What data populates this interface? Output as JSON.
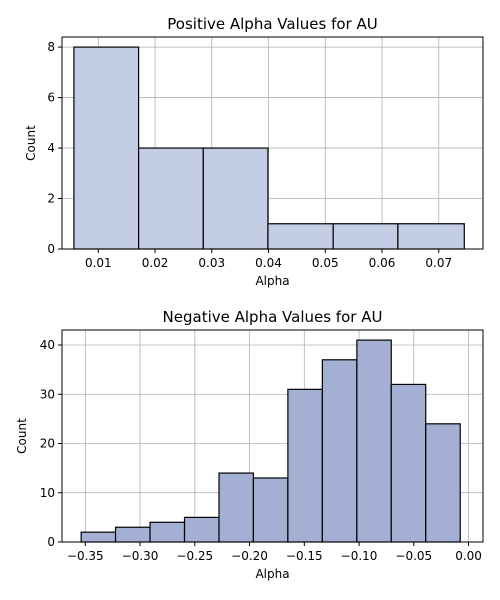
{
  "chart_data": [
    {
      "type": "bar",
      "title": "Positive Alpha Values for AU",
      "xlabel": "Alpha",
      "ylabel": "Count",
      "xlim": [
        0.0036,
        0.0778
      ],
      "ylim": [
        0,
        8.4
      ],
      "xticks": [
        0.01,
        0.02,
        0.03,
        0.04,
        0.05,
        0.06,
        0.07
      ],
      "xtick_labels": [
        "0.01",
        "0.02",
        "0.03",
        "0.04",
        "0.05",
        "0.06",
        "0.07"
      ],
      "yticks": [
        0,
        2,
        4,
        6,
        8
      ],
      "ytick_labels": [
        "0",
        "2",
        "4",
        "6",
        "8"
      ],
      "bin_edges": [
        0.0057,
        0.0171,
        0.0285,
        0.0399,
        0.0514,
        0.0628,
        0.0745
      ],
      "values": [
        8,
        4,
        4,
        1,
        1,
        1
      ],
      "bar_color": "#c3cde3",
      "grid": true
    },
    {
      "type": "bar",
      "title": "Negative Alpha Values for AU",
      "xlabel": "Alpha",
      "ylabel": "Count",
      "xlim": [
        -0.3713,
        0.0132
      ],
      "ylim": [
        0,
        43.05
      ],
      "xticks": [
        -0.35,
        -0.3,
        -0.25,
        -0.2,
        -0.15,
        -0.1,
        -0.05,
        0.0
      ],
      "xtick_labels": [
        "−0.35",
        "−0.30",
        "−0.25",
        "−0.20",
        "−0.15",
        "−0.10",
        "−0.05",
        "0.00"
      ],
      "yticks": [
        0,
        10,
        20,
        30,
        40
      ],
      "ytick_labels": [
        "0",
        "10",
        "20",
        "30",
        "40"
      ],
      "bin_edges": [
        -0.3538,
        -0.3224,
        -0.2909,
        -0.2594,
        -0.2279,
        -0.1965,
        -0.165,
        -0.1335,
        -0.102,
        -0.0706,
        -0.0391,
        -0.0076
      ],
      "values": [
        2,
        3,
        4,
        5,
        14,
        13,
        31,
        37,
        41,
        32,
        24
      ],
      "bar_color": "#a3b0d4",
      "grid": true
    }
  ]
}
